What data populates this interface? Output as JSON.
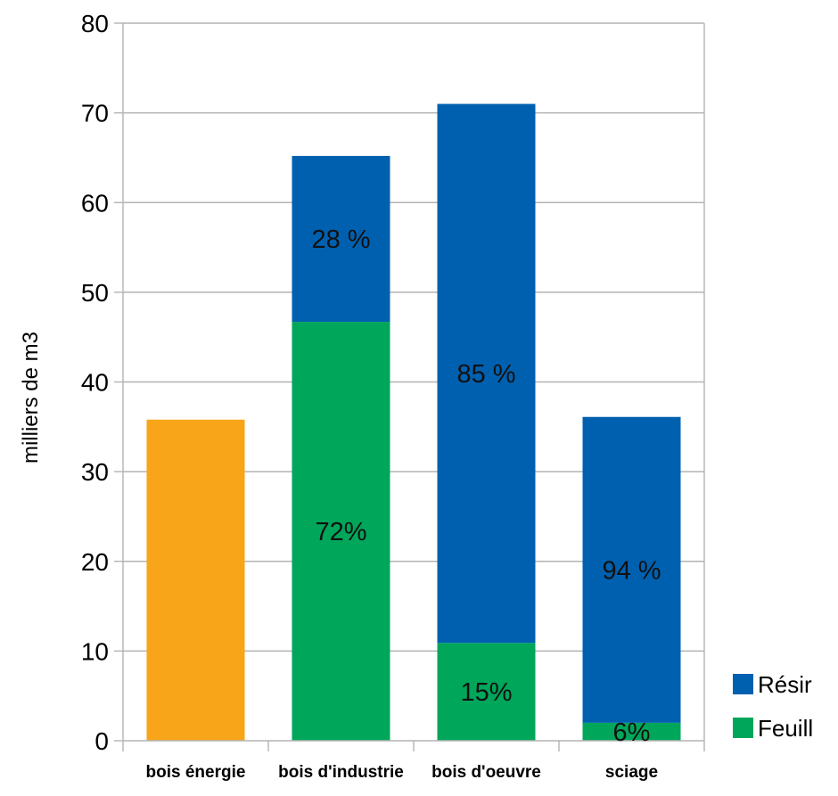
{
  "chart_data": {
    "type": "bar",
    "stacked": true,
    "categories": [
      "bois énergie",
      "bois d'industrie",
      "bois d'oeuvre",
      "sciage"
    ],
    "series": [
      {
        "name": "Feuill",
        "color": "#00a65a",
        "values": [
          0,
          46.7,
          10.9,
          2.0
        ],
        "labels": [
          "",
          "72%",
          "15%",
          "6%"
        ]
      },
      {
        "name": "Résir",
        "color": "#0060b0",
        "values": [
          0,
          18.5,
          60.1,
          34.1
        ],
        "labels": [
          "",
          "28 %",
          "85 %",
          "94 %"
        ]
      },
      {
        "name": "",
        "color": "#f8a51a",
        "values": [
          35.8,
          0,
          0,
          0
        ],
        "labels": [
          "",
          "",
          "",
          ""
        ]
      }
    ],
    "title": "",
    "xlabel": "",
    "ylabel": "milliers de m3",
    "ylim": [
      0,
      80
    ],
    "yticks": [
      0,
      10,
      20,
      30,
      40,
      50,
      60,
      70,
      80
    ],
    "grid": true,
    "legend": {
      "position": "right-bottom",
      "entries": [
        "Résir",
        "Feuill"
      ]
    },
    "axis_color": "#b3b3b3",
    "grid_color": "#b3b3b3"
  }
}
